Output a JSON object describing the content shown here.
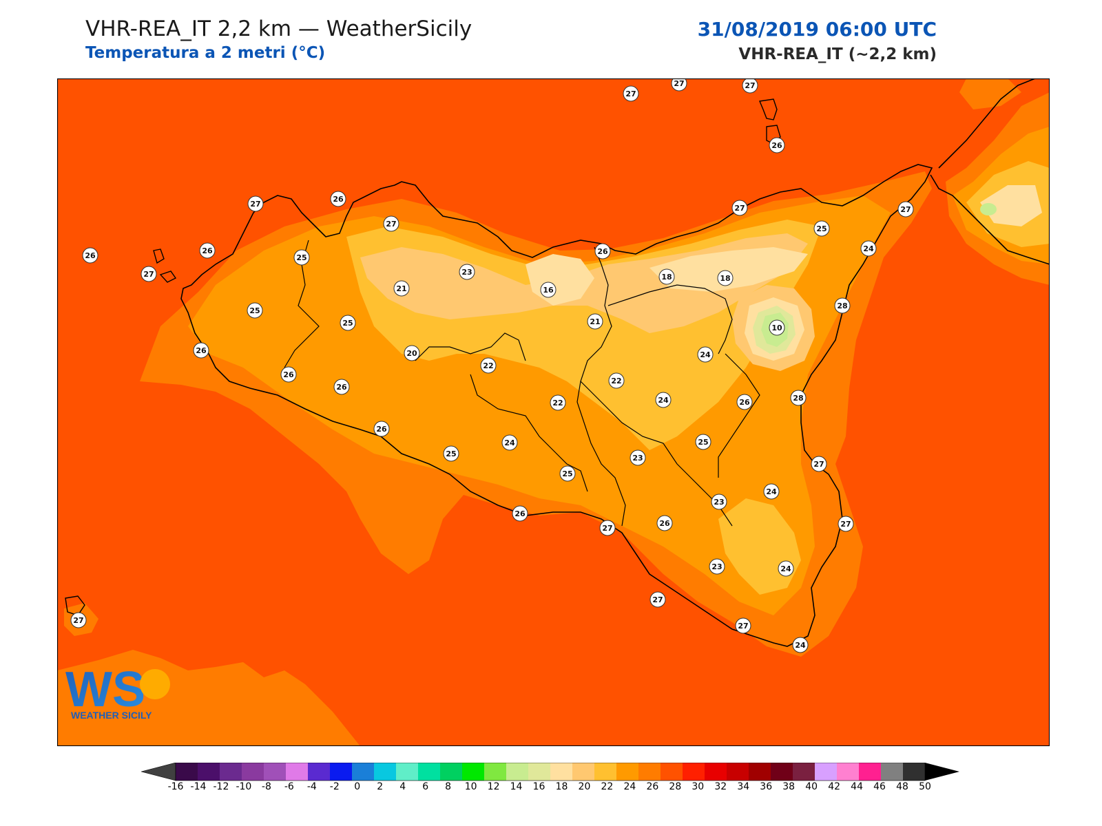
{
  "header": {
    "title": "VHR-REA_IT 2,2 km — WeatherSicily",
    "subtitle": "Temperatura a 2 metri (°C)",
    "datetime": "31/08/2019 06:00 UTC",
    "model": "VHR-REA_IT (~2,2 km)"
  },
  "logo": {
    "text": "WS",
    "caption": "WEATHER SICILY"
  },
  "colorbar": {
    "labels": [
      "-16",
      "-14",
      "-12",
      "-10",
      "-8",
      "-6",
      "-4",
      "-2",
      "0",
      "2",
      "4",
      "6",
      "8",
      "10",
      "12",
      "14",
      "16",
      "18",
      "20",
      "22",
      "24",
      "26",
      "28",
      "30",
      "32",
      "34",
      "36",
      "38",
      "40",
      "42",
      "44",
      "46",
      "48",
      "50"
    ],
    "colors": [
      "#3a0a4a",
      "#4b0f6a",
      "#6b2a8f",
      "#8a3a9f",
      "#a050b8",
      "#e07ae8",
      "#5a2ad0",
      "#0a1bf0",
      "#1a7fd8",
      "#08c8e0",
      "#60eec8",
      "#00e0a0",
      "#00d060",
      "#00e800",
      "#80e840",
      "#c8ec90",
      "#e0e89a",
      "#ffe0a0",
      "#ffc870",
      "#ffc030",
      "#ff9a00",
      "#ff7c00",
      "#ff5200",
      "#ff2000",
      "#e80000",
      "#c80000",
      "#a00000",
      "#700018",
      "#7a2040",
      "#d8a0ff",
      "#ff80d0",
      "#ff2090",
      "#808080",
      "#303030"
    ],
    "under_color": "#404040",
    "over_color": "#000000"
  },
  "stations": [
    {
      "label": "27"
    },
    {
      "label": "27"
    },
    {
      "label": "27"
    },
    {
      "label": "26"
    },
    {
      "label": "27"
    },
    {
      "label": "26"
    },
    {
      "label": "27"
    },
    {
      "label": "26"
    },
    {
      "label": "25"
    },
    {
      "label": "26"
    },
    {
      "label": "27"
    },
    {
      "label": "23"
    },
    {
      "label": "21"
    },
    {
      "label": "16"
    },
    {
      "label": "26"
    },
    {
      "label": "18"
    },
    {
      "label": "18"
    },
    {
      "label": "27"
    },
    {
      "label": "25"
    },
    {
      "label": "27"
    },
    {
      "label": "24"
    },
    {
      "label": "25"
    },
    {
      "label": "25"
    },
    {
      "label": "21"
    },
    {
      "label": "10"
    },
    {
      "label": "28"
    },
    {
      "label": "26"
    },
    {
      "label": "20"
    },
    {
      "label": "22"
    },
    {
      "label": "24"
    },
    {
      "label": "26"
    },
    {
      "label": "26"
    },
    {
      "label": "22"
    },
    {
      "label": "22"
    },
    {
      "label": "24"
    },
    {
      "label": "26"
    },
    {
      "label": "28"
    },
    {
      "label": "26"
    },
    {
      "label": "24"
    },
    {
      "label": "25"
    },
    {
      "label": "25"
    },
    {
      "label": "23"
    },
    {
      "label": "25"
    },
    {
      "label": "27"
    },
    {
      "label": "24"
    },
    {
      "label": "23"
    },
    {
      "label": "26"
    },
    {
      "label": "26"
    },
    {
      "label": "27"
    },
    {
      "label": "27"
    },
    {
      "label": "23"
    },
    {
      "label": "24"
    },
    {
      "label": "27"
    },
    {
      "label": "27"
    },
    {
      "label": "24"
    },
    {
      "label": "27"
    }
  ]
}
